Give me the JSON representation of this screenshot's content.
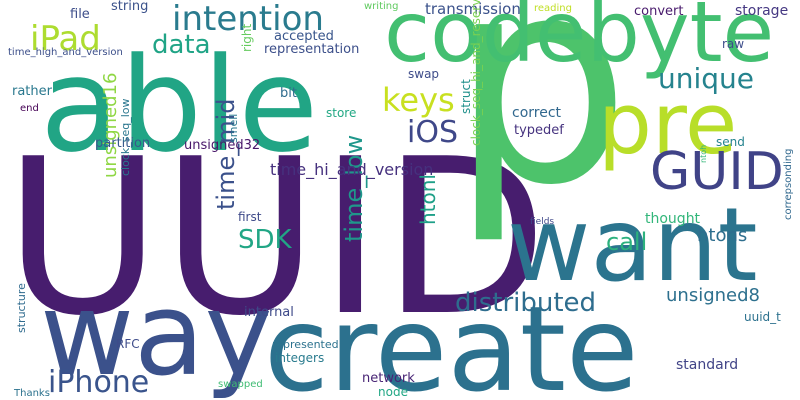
{
  "words": [
    {
      "text": "UUID",
      "color": "#471d6e"
    },
    {
      "text": "p",
      "color": "#4dc36b"
    },
    {
      "text": "able",
      "color": "#21a585"
    },
    {
      "text": "codebyte",
      "color": "#43bf71"
    },
    {
      "text": "pre",
      "color": "#b8de29"
    },
    {
      "text": "create",
      "color": "#2c718e"
    },
    {
      "text": "way",
      "color": "#3b518b"
    },
    {
      "text": "want",
      "color": "#2b748e"
    },
    {
      "text": "GUID",
      "color": "#404387"
    },
    {
      "text": "intention",
      "color": "#2a7b8e"
    },
    {
      "text": "iPad",
      "color": "#addc30"
    },
    {
      "text": "data",
      "color": "#20a486"
    },
    {
      "text": "unique",
      "color": "#25838e"
    },
    {
      "text": "keys",
      "color": "#c8e020"
    },
    {
      "text": "iOS",
      "color": "#3f4889"
    },
    {
      "text": "distributed",
      "color": "#2e6d8e"
    },
    {
      "text": "iPhone",
      "color": "#3a548c"
    },
    {
      "text": "SDK",
      "color": "#21a685"
    },
    {
      "text": "time_mid",
      "color": "#3b518b"
    },
    {
      "text": "time_low",
      "color": "#1f978b"
    },
    {
      "text": "htonl",
      "color": "#1fa088"
    },
    {
      "text": "call",
      "color": "#2cb17e"
    },
    {
      "text": "time_hi_and_version",
      "color": "#46317e"
    },
    {
      "text": "unsigned16",
      "color": "#8fd744"
    },
    {
      "text": "unsigned8",
      "color": "#2d708e"
    },
    {
      "text": "htons",
      "color": "#2e6e8e"
    },
    {
      "text": "thought",
      "color": "#32b67a"
    },
    {
      "text": "transmission",
      "color": "#3b528b"
    },
    {
      "text": "representation",
      "color": "#3c4f8a"
    },
    {
      "text": "accepted",
      "color": "#39568c"
    },
    {
      "text": "convert",
      "color": "#481a6c"
    },
    {
      "text": "storage",
      "color": "#453882"
    },
    {
      "text": "string",
      "color": "#3b528b"
    },
    {
      "text": "file",
      "color": "#3d4e8a"
    },
    {
      "text": "writing",
      "color": "#60ca60"
    },
    {
      "text": "reading",
      "color": "#c0df25"
    },
    {
      "text": "time_high_and_version",
      "color": "#3c4f8a"
    },
    {
      "text": "right",
      "color": "#65cb5e"
    },
    {
      "text": "rather",
      "color": "#2a788e"
    },
    {
      "text": "end",
      "color": "#440154"
    },
    {
      "text": "bit",
      "color": "#2f6c8e"
    },
    {
      "text": "swap",
      "color": "#3e4c8a"
    },
    {
      "text": "store",
      "color": "#22a884"
    },
    {
      "text": "correct",
      "color": "#31688e"
    },
    {
      "text": "struct",
      "color": "#21918c"
    },
    {
      "text": "typedef",
      "color": "#46337f"
    },
    {
      "text": "clock_seq_hi_and_reserved",
      "color": "#7ad151"
    },
    {
      "text": "raw",
      "color": "#3d4d8a"
    },
    {
      "text": "send",
      "color": "#25838e"
    },
    {
      "text": "partition",
      "color": "#38598c"
    },
    {
      "text": "unsigned32",
      "color": "#481769"
    },
    {
      "text": "clock_seq_low",
      "color": "#2a768e"
    },
    {
      "text": "smell",
      "color": "#2a788e"
    },
    {
      "text": "first",
      "color": "#3e4a89"
    },
    {
      "text": "ntoh",
      "color": "#35b779"
    },
    {
      "text": "fields",
      "color": "#3f4889"
    },
    {
      "text": "correpsonding",
      "color": "#31688e"
    },
    {
      "text": "RFC",
      "color": "#3e4c8a"
    },
    {
      "text": "internal",
      "color": "#3e4a89"
    },
    {
      "text": "uuid_t",
      "color": "#2c718e"
    },
    {
      "text": "structure",
      "color": "#2f6b8e"
    },
    {
      "text": "represented",
      "color": "#2c728e"
    },
    {
      "text": "integers",
      "color": "#297b8e"
    },
    {
      "text": "standard",
      "color": "#414487"
    },
    {
      "text": "network",
      "color": "#482475"
    },
    {
      "text": "node",
      "color": "#22a785"
    },
    {
      "text": "Thanks",
      "color": "#2c728e"
    },
    {
      "text": "swapped",
      "color": "#3fbc73"
    }
  ]
}
